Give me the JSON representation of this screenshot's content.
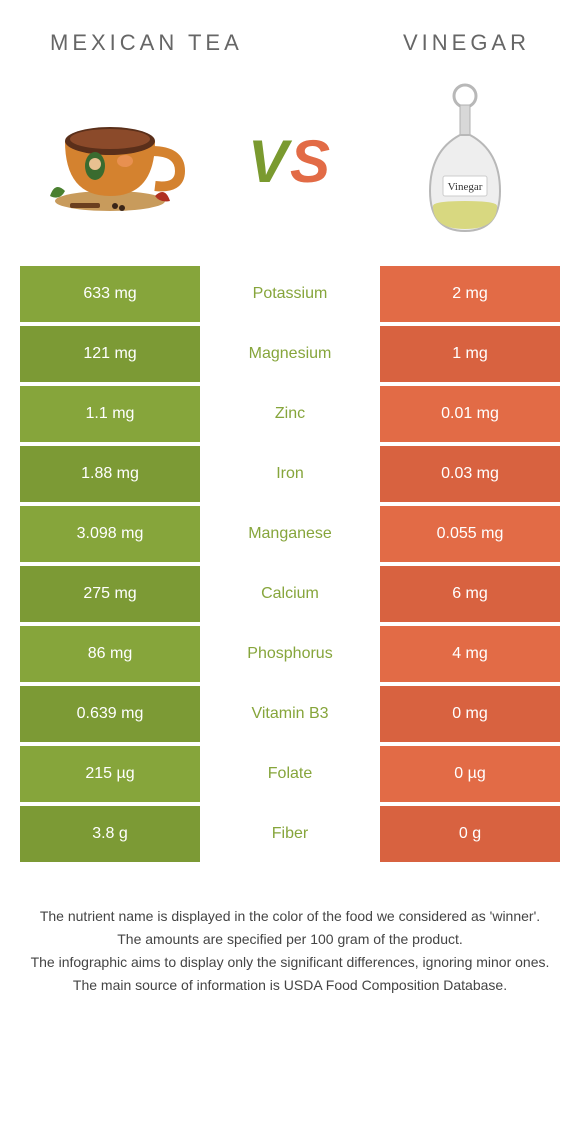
{
  "left": {
    "title": "MEXICAN TEA",
    "color": "#86a53b",
    "alt_color": "#7c9a35"
  },
  "right": {
    "title": "VINEGAR",
    "color": "#e26b46",
    "alt_color": "#d86240"
  },
  "mid_text_color_winner_left": "#86a53b",
  "mid_text_color_winner_right": "#e26b46",
  "rows": [
    {
      "label": "Potassium",
      "left": "633 mg",
      "right": "2 mg",
      "winner": "left"
    },
    {
      "label": "Magnesium",
      "left": "121 mg",
      "right": "1 mg",
      "winner": "left"
    },
    {
      "label": "Zinc",
      "left": "1.1 mg",
      "right": "0.01 mg",
      "winner": "left"
    },
    {
      "label": "Iron",
      "left": "1.88 mg",
      "right": "0.03 mg",
      "winner": "left"
    },
    {
      "label": "Manganese",
      "left": "3.098 mg",
      "right": "0.055 mg",
      "winner": "left"
    },
    {
      "label": "Calcium",
      "left": "275 mg",
      "right": "6 mg",
      "winner": "left"
    },
    {
      "label": "Phosphorus",
      "left": "86 mg",
      "right": "4 mg",
      "winner": "left"
    },
    {
      "label": "Vitamin B3",
      "left": "0.639 mg",
      "right": "0 mg",
      "winner": "left"
    },
    {
      "label": "Folate",
      "left": "215 µg",
      "right": "0 µg",
      "winner": "left"
    },
    {
      "label": "Fiber",
      "left": "3.8 g",
      "right": "0 g",
      "winner": "left"
    }
  ],
  "footer": [
    "The nutrient name is displayed in the color of the food we considered as 'winner'.",
    "The amounts are specified per 100 gram of the product.",
    "The infographic aims to display only the significant differences, ignoring minor ones.",
    "The main source of information is USDA Food Composition Database."
  ]
}
